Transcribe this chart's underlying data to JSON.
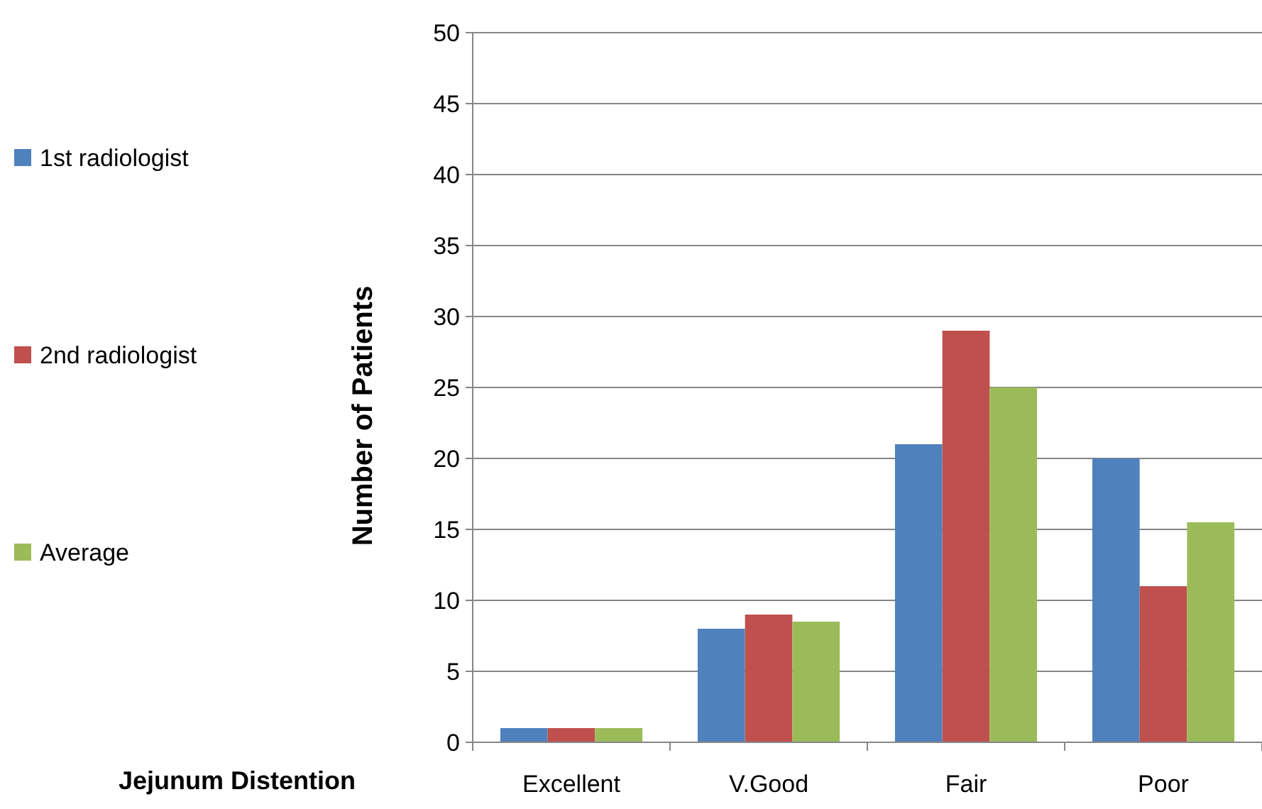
{
  "chart_data": {
    "type": "bar",
    "xlabel": "Jejunum Distention",
    "ylabel": "Number of Patients",
    "categories": [
      "Excellent",
      "V.Good",
      "Fair",
      "Poor"
    ],
    "series": [
      {
        "name": "1st radiologist",
        "color": "#4f81bd",
        "values": [
          1,
          8,
          21,
          20
        ]
      },
      {
        "name": "2nd radiologist",
        "color": "#c0504d",
        "values": [
          1,
          9,
          29,
          11
        ]
      },
      {
        "name": "Average",
        "color": "#9bbb59",
        "values": [
          1,
          8.5,
          25,
          15.5
        ]
      }
    ],
    "ylim": [
      0,
      50
    ],
    "yticks": [
      0,
      5,
      10,
      15,
      20,
      25,
      30,
      35,
      40,
      45,
      50
    ],
    "grid": "y",
    "legend": "left"
  }
}
